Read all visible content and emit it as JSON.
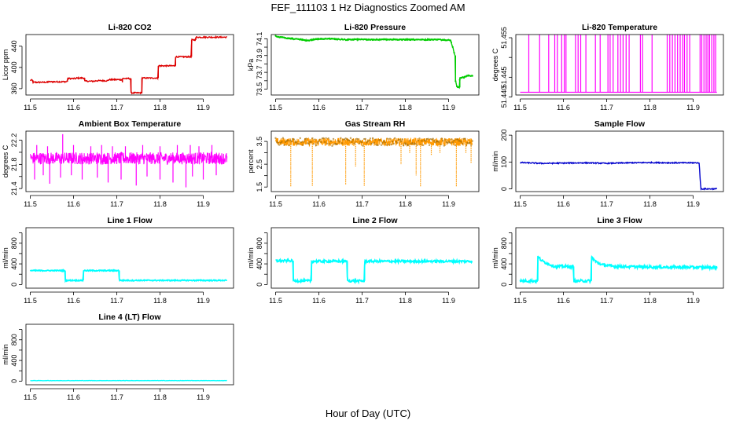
{
  "figure": {
    "title": "FEF_111103  1 Hz Diagnostics Zoomed AM",
    "xlabel": "Hour of Day (UTC)"
  },
  "chart_data": [
    {
      "type": "line",
      "title": "Li-820 CO2",
      "ylabel": "Licor ppm",
      "xlim": [
        11.49,
        11.97
      ],
      "ylim": [
        348,
        462
      ],
      "x_ticks": [
        11.5,
        11.6,
        11.7,
        11.8,
        11.9
      ],
      "x_tick_labels": [
        "11.5",
        "11.6",
        "11.7",
        "11.8",
        "11.9"
      ],
      "y_ticks": [
        360,
        400,
        440
      ],
      "y_tick_labels": [
        "360",
        "400",
        "440"
      ],
      "color": "#dd0000",
      "noise": 1.2,
      "series": [
        {
          "x": [
            11.5,
            11.505,
            11.506,
            11.54,
            11.541,
            11.585,
            11.586,
            11.606,
            11.607,
            11.625,
            11.626,
            11.65,
            11.651,
            11.68,
            11.681,
            11.712,
            11.713,
            11.713,
            11.732,
            11.733,
            11.757,
            11.758,
            11.758,
            11.795,
            11.796,
            11.835,
            11.836,
            11.872,
            11.873,
            11.882,
            11.883,
            11.955
          ],
          "y": [
            376,
            376,
            372,
            372,
            373,
            373,
            379,
            379,
            380,
            380,
            374,
            374,
            375,
            375,
            377,
            377,
            372,
            379,
            379,
            352,
            352,
            352,
            380,
            380,
            403,
            403,
            420,
            420,
            452,
            452,
            457,
            457
          ]
        }
      ]
    },
    {
      "type": "line",
      "title": "Li-820 Pressure",
      "ylabel": "kPa",
      "xlim": [
        11.49,
        11.97
      ],
      "ylim": [
        73.43,
        74.15
      ],
      "x_ticks": [
        11.5,
        11.6,
        11.7,
        11.8,
        11.9
      ],
      "x_tick_labels": [
        "11.5",
        "11.6",
        "11.7",
        "11.8",
        "11.9"
      ],
      "y_ticks": [
        73.5,
        73.6,
        73.7,
        73.8,
        73.9,
        74.0,
        74.1
      ],
      "y_tick_labels": [
        "73.5",
        "",
        "73.7",
        "",
        "73.9",
        "",
        "74.1"
      ],
      "color": "#00cc00",
      "noise": 0.007,
      "markers": true,
      "series": [
        {
          "x": [
            11.5,
            11.52,
            11.54,
            11.56,
            11.575,
            11.6,
            11.63,
            11.66,
            11.7,
            11.75,
            11.8,
            11.85,
            11.88,
            11.905,
            11.915,
            11.916,
            11.92,
            11.925,
            11.926,
            11.935,
            11.945,
            11.955
          ],
          "y": [
            74.13,
            74.11,
            74.1,
            74.09,
            74.08,
            74.1,
            74.1,
            74.09,
            74.09,
            74.09,
            74.09,
            74.09,
            74.09,
            74.08,
            73.9,
            73.6,
            73.52,
            73.52,
            73.64,
            73.64,
            73.66,
            73.66
          ]
        }
      ]
    },
    {
      "type": "line",
      "title": "Li-820 Temperature",
      "ylabel": "degrees C",
      "xlim": [
        11.49,
        11.97
      ],
      "ylim": [
        51.4405,
        51.4558
      ],
      "x_ticks": [
        11.5,
        11.6,
        11.7,
        11.8,
        11.9
      ],
      "x_tick_labels": [
        "11.5",
        "11.6",
        "11.7",
        "11.8",
        "11.9"
      ],
      "y_ticks": [
        51.44,
        51.445,
        51.45,
        51.455
      ],
      "y_tick_labels": [
        "51.440",
        "51.445",
        "",
        "51.455"
      ],
      "color": "#ff00ff",
      "base": 51.4412,
      "top": 51.4558,
      "spikes": [
        11.52,
        11.545,
        11.566,
        11.58,
        11.586,
        11.596,
        11.602,
        11.606,
        11.628,
        11.634,
        11.64,
        11.652,
        11.674,
        11.685,
        11.703,
        11.708,
        11.715,
        11.726,
        11.732,
        11.738,
        11.745,
        11.752,
        11.778,
        11.783,
        11.805,
        11.84,
        11.846,
        11.852,
        11.858,
        11.864,
        11.87,
        11.876,
        11.88,
        11.886,
        11.892,
        11.916,
        11.92,
        11.925,
        11.93,
        11.934,
        11.938,
        11.943,
        11.948,
        11.952
      ]
    },
    {
      "type": "line",
      "title": "Ambient Box Temperature",
      "ylabel": "degrees C",
      "xlim": [
        11.49,
        11.97
      ],
      "ylim": [
        21.35,
        22.35
      ],
      "x_ticks": [
        11.5,
        11.6,
        11.7,
        11.8,
        11.9
      ],
      "x_tick_labels": [
        "11.5",
        "11.6",
        "11.7",
        "11.8",
        "11.9"
      ],
      "y_ticks": [
        21.4,
        21.6,
        21.8,
        22.0,
        22.2
      ],
      "y_tick_labels": [
        "21.4",
        "",
        "21.8",
        "",
        "22.2"
      ],
      "color": "#ff00ff",
      "band": [
        21.8,
        22.0
      ],
      "dips": [
        [
          11.51,
          21.55
        ],
        [
          11.53,
          21.62
        ],
        [
          11.545,
          21.48
        ],
        [
          11.57,
          21.58
        ],
        [
          11.595,
          21.62
        ],
        [
          11.62,
          21.55
        ],
        [
          11.655,
          21.58
        ],
        [
          11.68,
          21.5
        ],
        [
          11.71,
          21.55
        ],
        [
          11.745,
          21.45
        ],
        [
          11.77,
          21.6
        ],
        [
          11.8,
          21.55
        ],
        [
          11.83,
          21.5
        ],
        [
          11.86,
          21.42
        ],
        [
          11.875,
          21.6
        ],
        [
          11.9,
          21.55
        ],
        [
          11.93,
          21.62
        ]
      ],
      "peaks": [
        [
          11.515,
          22.12
        ],
        [
          11.54,
          22.1
        ],
        [
          11.575,
          22.3
        ],
        [
          11.6,
          22.12
        ],
        [
          11.64,
          22.1
        ],
        [
          11.665,
          22.12
        ],
        [
          11.69,
          22.1
        ],
        [
          11.72,
          22.1
        ],
        [
          11.76,
          22.12
        ],
        [
          11.8,
          22.1
        ],
        [
          11.84,
          22.12
        ],
        [
          11.87,
          22.12
        ],
        [
          11.89,
          22.1
        ],
        [
          11.92,
          22.12
        ]
      ]
    },
    {
      "type": "line",
      "title": "Gas Stream RH",
      "ylabel": "percent",
      "xlim": [
        11.49,
        11.97
      ],
      "ylim": [
        1.3,
        3.95
      ],
      "x_ticks": [
        11.5,
        11.6,
        11.7,
        11.8,
        11.9
      ],
      "x_tick_labels": [
        "11.5",
        "11.6",
        "11.7",
        "11.8",
        "11.9"
      ],
      "y_ticks": [
        1.5,
        2.0,
        2.5,
        3.0,
        3.5
      ],
      "y_tick_labels": [
        "1.5",
        "",
        "2.5",
        "",
        "3.5"
      ],
      "color": "#ff9900",
      "band": [
        3.3,
        3.65
      ],
      "dips": [
        [
          11.535,
          1.5
        ],
        [
          11.585,
          1.55
        ],
        [
          11.662,
          1.6
        ],
        [
          11.685,
          2.4
        ],
        [
          11.705,
          1.55
        ],
        [
          11.79,
          2.5
        ],
        [
          11.81,
          3.0
        ],
        [
          11.825,
          2.0
        ],
        [
          11.835,
          1.5
        ],
        [
          11.86,
          2.9
        ],
        [
          11.88,
          3.0
        ],
        [
          11.918,
          1.5
        ],
        [
          11.94,
          3.0
        ],
        [
          11.952,
          2.55
        ]
      ]
    },
    {
      "type": "line",
      "title": "Sample Flow",
      "ylabel": "ml/min",
      "xlim": [
        11.49,
        11.97
      ],
      "ylim": [
        -10,
        215
      ],
      "x_ticks": [
        11.5,
        11.6,
        11.7,
        11.8,
        11.9
      ],
      "x_tick_labels": [
        "11.5",
        "11.6",
        "11.7",
        "11.8",
        "11.9"
      ],
      "y_ticks": [
        0,
        100,
        200
      ],
      "y_tick_labels": [
        "0",
        "100",
        "200"
      ],
      "color": "#0000cc",
      "noise": 2,
      "series": [
        {
          "x": [
            11.5,
            11.55,
            11.6,
            11.65,
            11.7,
            11.75,
            11.8,
            11.85,
            11.914,
            11.916,
            11.918,
            11.955
          ],
          "y": [
            98,
            95,
            96,
            97,
            95,
            97,
            98,
            97,
            97,
            40,
            0,
            0
          ]
        }
      ]
    },
    {
      "type": "line",
      "title": "Line 1 Flow",
      "ylabel": "ml/min",
      "xlim": [
        11.49,
        11.97
      ],
      "ylim": [
        -70,
        1100
      ],
      "x_ticks": [
        11.5,
        11.6,
        11.7,
        11.8,
        11.9
      ],
      "x_tick_labels": [
        "11.5",
        "11.6",
        "11.7",
        "11.8",
        "11.9"
      ],
      "y_ticks": [
        0,
        200,
        400,
        600,
        800,
        1000
      ],
      "y_tick_labels": [
        "0",
        "",
        "400",
        "",
        "800",
        ""
      ],
      "color": "#00ffff",
      "noise": 10,
      "series": [
        {
          "x": [
            11.5,
            11.58,
            11.581,
            11.622,
            11.623,
            11.705,
            11.706,
            11.955
          ],
          "y": [
            270,
            270,
            80,
            80,
            270,
            270,
            80,
            80
          ]
        }
      ]
    },
    {
      "type": "line",
      "title": "Line 2 Flow",
      "ylabel": "ml/min",
      "xlim": [
        11.49,
        11.97
      ],
      "ylim": [
        -70,
        1100
      ],
      "x_ticks": [
        11.5,
        11.6,
        11.7,
        11.8,
        11.9
      ],
      "x_tick_labels": [
        "11.5",
        "11.6",
        "11.7",
        "11.8",
        "11.9"
      ],
      "y_ticks": [
        0,
        200,
        400,
        600,
        800,
        1000
      ],
      "y_tick_labels": [
        "0",
        "",
        "400",
        "",
        "800",
        ""
      ],
      "color": "#00ffff",
      "noise": 22,
      "series": [
        {
          "x": [
            11.5,
            11.54,
            11.541,
            11.582,
            11.583,
            11.665,
            11.666,
            11.705,
            11.706,
            11.955
          ],
          "y": [
            460,
            460,
            70,
            70,
            450,
            450,
            70,
            70,
            450,
            450
          ]
        }
      ]
    },
    {
      "type": "line",
      "title": "Line 3 Flow",
      "ylabel": "ml/min",
      "xlim": [
        11.49,
        11.97
      ],
      "ylim": [
        -70,
        1100
      ],
      "x_ticks": [
        11.5,
        11.6,
        11.7,
        11.8,
        11.9
      ],
      "x_tick_labels": [
        "11.5",
        "11.6",
        "11.7",
        "11.8",
        "11.9"
      ],
      "y_ticks": [
        0,
        200,
        400,
        600,
        800,
        1000
      ],
      "y_tick_labels": [
        "0",
        "",
        "400",
        "",
        "800",
        ""
      ],
      "color": "#00ffff",
      "noise": 25,
      "series": [
        {
          "x": [
            11.5,
            11.54,
            11.541,
            11.55,
            11.565,
            11.58,
            11.623,
            11.624,
            11.664,
            11.665,
            11.675,
            11.69,
            11.72,
            11.8,
            11.955
          ],
          "y": [
            70,
            70,
            540,
            460,
            400,
            350,
            350,
            70,
            70,
            540,
            440,
            380,
            350,
            340,
            330
          ]
        }
      ]
    },
    {
      "type": "line",
      "title": "Line 4 (LT) Flow",
      "ylabel": "ml/min",
      "xlim": [
        11.49,
        11.97
      ],
      "ylim": [
        -70,
        1100
      ],
      "x_ticks": [
        11.5,
        11.6,
        11.7,
        11.8,
        11.9
      ],
      "x_tick_labels": [
        "11.5",
        "11.6",
        "11.7",
        "11.8",
        "11.9"
      ],
      "y_ticks": [
        0,
        200,
        400,
        600,
        800,
        1000
      ],
      "y_tick_labels": [
        "0",
        "",
        "400",
        "",
        "800",
        ""
      ],
      "color": "#00ffff",
      "noise": 3,
      "series": [
        {
          "x": [
            11.5,
            11.955
          ],
          "y": [
            10,
            10
          ]
        }
      ]
    }
  ]
}
